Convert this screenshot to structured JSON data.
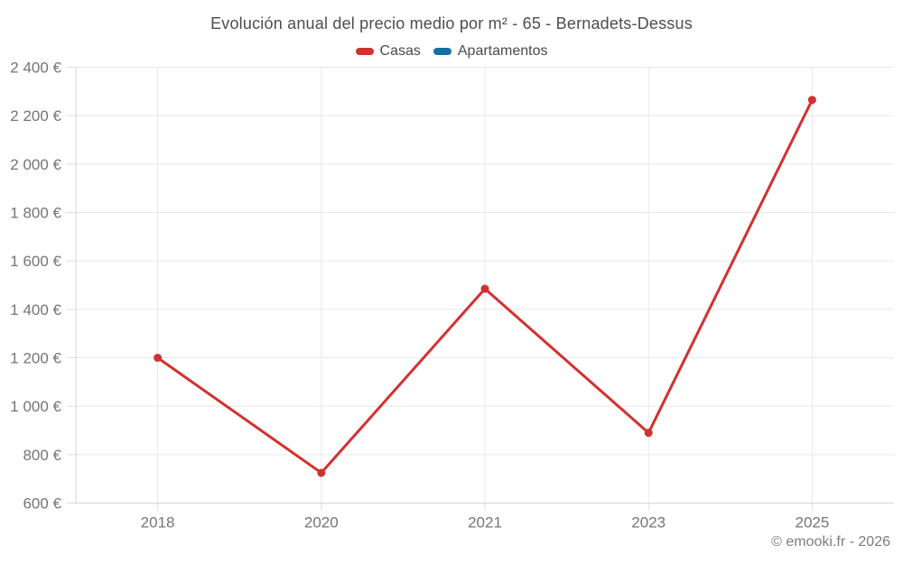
{
  "title": "Evolución anual del precio medio por m² - 65 - Bernadets-Dessus",
  "legend": {
    "items": [
      {
        "label": "Casas",
        "color": "#d4302f"
      },
      {
        "label": "Apartamentos",
        "color": "#166fa4"
      }
    ]
  },
  "copyright": "© emooki.fr - 2026",
  "chart_data": {
    "type": "line",
    "title": "Evolución anual del precio medio por m² - 65 - Bernadets-Dessus",
    "categories": [
      "2018",
      "2020",
      "2021",
      "2023",
      "2025"
    ],
    "series": [
      {
        "name": "Casas",
        "color": "#d4302f",
        "values": [
          1200,
          725,
          1485,
          890,
          2265
        ]
      },
      {
        "name": "Apartamentos",
        "color": "#166fa4",
        "values": []
      }
    ],
    "xlabel": "",
    "ylabel": "",
    "ylim": [
      600,
      2400
    ],
    "ytick_step": 200,
    "ytick_format": "{value} €",
    "grid": true,
    "legend_position": "top",
    "marker": "circle"
  }
}
